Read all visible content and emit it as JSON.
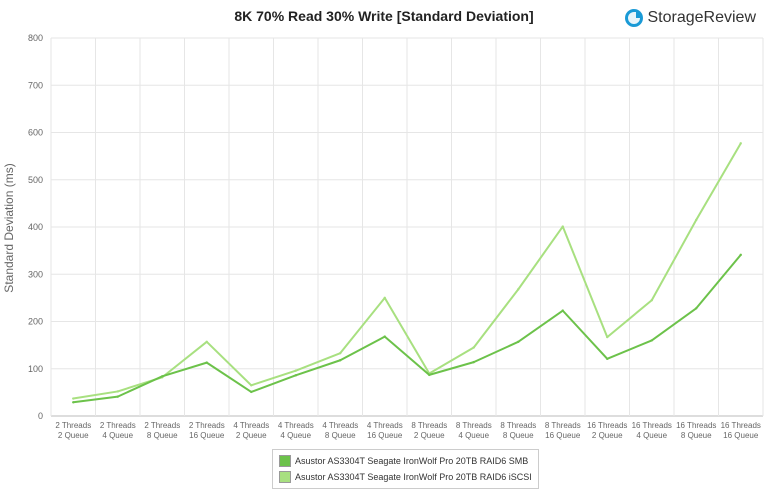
{
  "logo": {
    "text": "StorageReview",
    "icon": "storagereview-logo-icon",
    "icon_color": "#1a9ad6"
  },
  "chart_data": {
    "type": "line",
    "title": "8K 70% Read 30% Write [Standard Deviation]",
    "xlabel": "",
    "ylabel": "Standard Deviation (ms)",
    "ylim": [
      0,
      800
    ],
    "yticks": [
      0,
      100,
      200,
      300,
      400,
      500,
      600,
      700,
      800
    ],
    "grid": true,
    "legend_position": "bottom",
    "categories": [
      [
        "2 Threads",
        "2 Queue"
      ],
      [
        "2 Threads",
        "4 Queue"
      ],
      [
        "2 Threads",
        "8 Queue"
      ],
      [
        "2 Threads",
        "16 Queue"
      ],
      [
        "4 Threads",
        "2 Queue"
      ],
      [
        "4 Threads",
        "4 Queue"
      ],
      [
        "4 Threads",
        "8 Queue"
      ],
      [
        "4 Threads",
        "16 Queue"
      ],
      [
        "8 Threads",
        "2 Queue"
      ],
      [
        "8 Threads",
        "4 Queue"
      ],
      [
        "8 Threads",
        "8 Queue"
      ],
      [
        "8 Threads",
        "16 Queue"
      ],
      [
        "16 Threads",
        "2 Queue"
      ],
      [
        "16 Threads",
        "4 Queue"
      ],
      [
        "16 Threads",
        "8 Queue"
      ],
      [
        "16 Threads",
        "16 Queue"
      ]
    ],
    "series": [
      {
        "name": "Asustor AS3304T Seagate IronWolf Pro 20TB RAID6 SMB",
        "color": "#6cc24a",
        "values": [
          29,
          41,
          84,
          113,
          51,
          86,
          118,
          168,
          87,
          114,
          157,
          223,
          121,
          160,
          228,
          341
        ]
      },
      {
        "name": "Asustor AS3304T Seagate IronWolf Pro 20TB RAID6 iSCSI",
        "color": "#a8e080",
        "values": [
          37,
          52,
          82,
          157,
          65,
          96,
          133,
          250,
          90,
          145,
          268,
          401,
          167,
          245,
          415,
          577
        ]
      }
    ]
  }
}
